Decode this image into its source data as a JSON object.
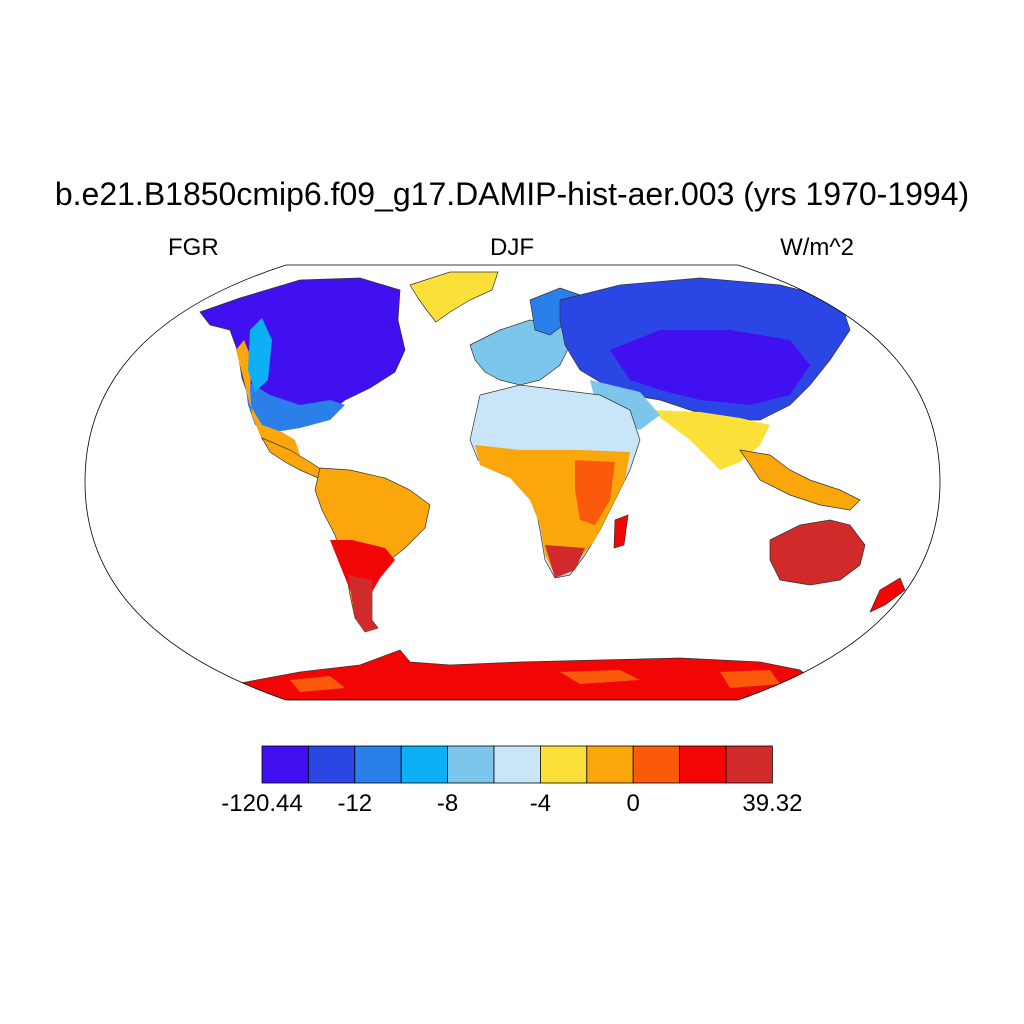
{
  "title": "b.e21.B1850cmip6.f09_g17.DAMIP-hist-aer.003 (yrs 1970-1994)",
  "subtitle_left": "FGR",
  "subtitle_center": "DJF",
  "subtitle_right": "W/m^2",
  "map": {
    "projection": "Robinson",
    "background": "#ffffff"
  },
  "colorbar": {
    "colors": [
      "#4010f0",
      "#2a47e6",
      "#2b7fea",
      "#0db0f5",
      "#7cc6ec",
      "#c8e6f7",
      "#fce03a",
      "#fba60a",
      "#fb5a0a",
      "#f20505",
      "#d12a2a"
    ],
    "labels": [
      "-120.44",
      "-12",
      "-8",
      "-4",
      "0",
      "39.32"
    ],
    "label_boundaries": [
      0,
      2,
      4,
      6,
      8,
      11
    ]
  }
}
